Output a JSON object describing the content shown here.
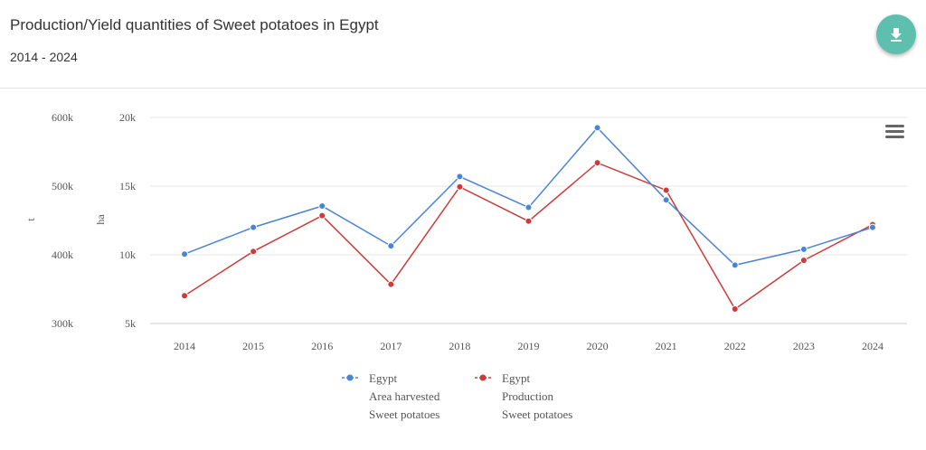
{
  "header": {
    "title": "Production/Yield quantities of Sweet potatoes in Egypt",
    "subtitle": "2014 - 2024",
    "download_icon": "download-icon",
    "accent_color": "#5fbfae"
  },
  "menu_icon": "hamburger-menu-icon",
  "chart_data": {
    "type": "line",
    "x": [
      "2014",
      "2015",
      "2016",
      "2017",
      "2018",
      "2019",
      "2020",
      "2021",
      "2022",
      "2023",
      "2024"
    ],
    "left_axis": {
      "label": "t",
      "ticks": [
        "300k",
        "400k",
        "500k",
        "600k"
      ],
      "range": [
        300000,
        600000
      ]
    },
    "right_axis": {
      "label": "ha",
      "ticks": [
        "5k",
        "10k",
        "15k",
        "20k"
      ],
      "range": [
        5000,
        20000
      ]
    },
    "series": [
      {
        "legend_lines": [
          "Egypt",
          "Area harvested",
          "Sweet potatoes"
        ],
        "axis": "ha",
        "color": "#4a84d4",
        "values": [
          10050,
          12000,
          13550,
          10650,
          15700,
          13450,
          19250,
          14000,
          9250,
          10400,
          12000
        ]
      },
      {
        "legend_lines": [
          "Egypt",
          "Production",
          "Sweet potatoes"
        ],
        "axis": "t",
        "color": "#cc3b3b",
        "values": [
          340500,
          405000,
          457000,
          357000,
          499000,
          449000,
          534000,
          494000,
          321000,
          392000,
          444000
        ]
      }
    ],
    "grid": true,
    "legend_position": "bottom"
  }
}
